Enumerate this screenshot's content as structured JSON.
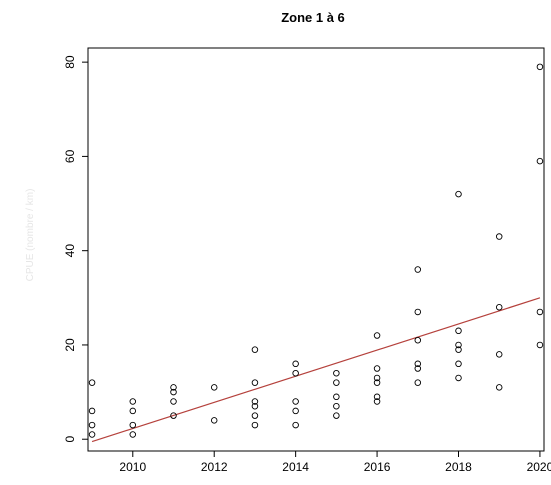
{
  "chart_data": {
    "type": "scatter",
    "title": "Zone 1 à 6",
    "xlabel": "",
    "ylabel": "CPUE (nombre / km)",
    "xlim": [
      2008.9,
      2020.1
    ],
    "ylim": [
      -2.5,
      83
    ],
    "x_ticks": [
      2010,
      2012,
      2014,
      2016,
      2018,
      2020
    ],
    "y_ticks": [
      0,
      20,
      40,
      60,
      80
    ],
    "grid": false,
    "legend": "none",
    "points": [
      {
        "x": 2009,
        "y": 12
      },
      {
        "x": 2009,
        "y": 6
      },
      {
        "x": 2009,
        "y": 3
      },
      {
        "x": 2009,
        "y": 1
      },
      {
        "x": 2010,
        "y": 8
      },
      {
        "x": 2010,
        "y": 6
      },
      {
        "x": 2010,
        "y": 3
      },
      {
        "x": 2010,
        "y": 1
      },
      {
        "x": 2011,
        "y": 11
      },
      {
        "x": 2011,
        "y": 10
      },
      {
        "x": 2011,
        "y": 8
      },
      {
        "x": 2011,
        "y": 5
      },
      {
        "x": 2012,
        "y": 11
      },
      {
        "x": 2012,
        "y": 4
      },
      {
        "x": 2013,
        "y": 19
      },
      {
        "x": 2013,
        "y": 12
      },
      {
        "x": 2013,
        "y": 8
      },
      {
        "x": 2013,
        "y": 7
      },
      {
        "x": 2013,
        "y": 5
      },
      {
        "x": 2013,
        "y": 3
      },
      {
        "x": 2014,
        "y": 16
      },
      {
        "x": 2014,
        "y": 14
      },
      {
        "x": 2014,
        "y": 8
      },
      {
        "x": 2014,
        "y": 6
      },
      {
        "x": 2014,
        "y": 3
      },
      {
        "x": 2015,
        "y": 14
      },
      {
        "x": 2015,
        "y": 12
      },
      {
        "x": 2015,
        "y": 9
      },
      {
        "x": 2015,
        "y": 7
      },
      {
        "x": 2015,
        "y": 5
      },
      {
        "x": 2016,
        "y": 22
      },
      {
        "x": 2016,
        "y": 15
      },
      {
        "x": 2016,
        "y": 13
      },
      {
        "x": 2016,
        "y": 12
      },
      {
        "x": 2016,
        "y": 9
      },
      {
        "x": 2016,
        "y": 8
      },
      {
        "x": 2017,
        "y": 36
      },
      {
        "x": 2017,
        "y": 27
      },
      {
        "x": 2017,
        "y": 21
      },
      {
        "x": 2017,
        "y": 16
      },
      {
        "x": 2017,
        "y": 15
      },
      {
        "x": 2017,
        "y": 12
      },
      {
        "x": 2018,
        "y": 52
      },
      {
        "x": 2018,
        "y": 23
      },
      {
        "x": 2018,
        "y": 20
      },
      {
        "x": 2018,
        "y": 19
      },
      {
        "x": 2018,
        "y": 16
      },
      {
        "x": 2018,
        "y": 13
      },
      {
        "x": 2019,
        "y": 43
      },
      {
        "x": 2019,
        "y": 28
      },
      {
        "x": 2019,
        "y": 18
      },
      {
        "x": 2019,
        "y": 11
      },
      {
        "x": 2020,
        "y": 79
      },
      {
        "x": 2020,
        "y": 59
      },
      {
        "x": 2020,
        "y": 27
      },
      {
        "x": 2020,
        "y": 20
      }
    ],
    "trend_line": {
      "x": [
        2009,
        2020
      ],
      "y": [
        -0.5,
        30
      ],
      "color": "#b5413c"
    },
    "colors": {
      "points": "#000000",
      "trend": "#b5413c",
      "axis": "#000000"
    }
  }
}
